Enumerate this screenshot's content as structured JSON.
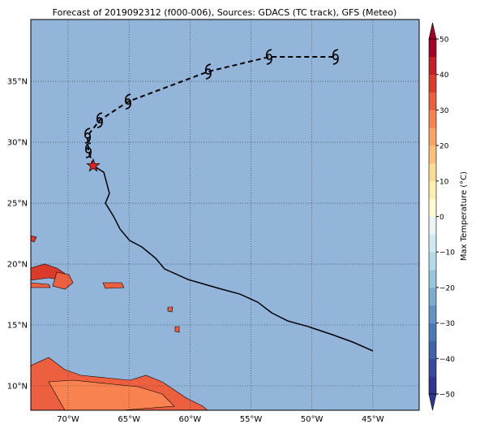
{
  "chart_data": {
    "type": "track-map",
    "title": "Forecast of 2019092312 (f000-006), Sources: GDACS (TC track), GFS (Meteo)",
    "xlim": [
      -73.06,
      -41.2
    ],
    "ylim": [
      8,
      40.07
    ],
    "xticks": [
      {
        "value": -70,
        "label": "70°W"
      },
      {
        "value": -65,
        "label": "65°W"
      },
      {
        "value": -60,
        "label": "60°W"
      },
      {
        "value": -55,
        "label": "55°W"
      },
      {
        "value": -50,
        "label": "50°W"
      },
      {
        "value": -45,
        "label": "45°W"
      }
    ],
    "yticks": [
      {
        "value": 10,
        "label": "10°N"
      },
      {
        "value": 15,
        "label": "15°N"
      },
      {
        "value": 20,
        "label": "20°N"
      },
      {
        "value": 25,
        "label": "25°N"
      },
      {
        "value": 30,
        "label": "30°N"
      },
      {
        "value": 35,
        "label": "35°N"
      }
    ],
    "grid": true,
    "past_track": {
      "lon": [
        -45.0,
        -46.66,
        -48.32,
        -50.32,
        -51.98,
        -53.31,
        -54.44,
        -55.9,
        -57.63,
        -60.16,
        -62.09,
        -62.82,
        -63.95,
        -64.95,
        -65.74,
        -66.28,
        -66.94,
        -66.61,
        -67.07,
        -67.94
      ],
      "lat": [
        12.87,
        13.6,
        14.2,
        14.87,
        15.33,
        16.0,
        16.87,
        17.53,
        18.0,
        18.73,
        19.6,
        20.47,
        21.4,
        21.93,
        22.87,
        23.93,
        25.0,
        25.8,
        27.53,
        28.07
      ],
      "color": "#000000"
    },
    "current_position": {
      "lon": -67.94,
      "lat": 28.07,
      "color": "#e8211b"
    },
    "forecast_track": {
      "lon": [
        -67.94,
        -68.34,
        -68.4,
        -67.41,
        -65.08,
        -58.5,
        -53.51,
        -48.06
      ],
      "lat": [
        28.07,
        29.33,
        30.53,
        31.8,
        33.33,
        35.8,
        37.0,
        37.0
      ],
      "color": "#000000"
    },
    "colorbar": {
      "label": "Max Temperature (°C)",
      "clim": [
        -50,
        50
      ],
      "ticks": [
        {
          "value": -50,
          "label": "−50"
        },
        {
          "value": -40,
          "label": "−40"
        },
        {
          "value": -30,
          "label": "−30"
        },
        {
          "value": -20,
          "label": "−20"
        },
        {
          "value": -10,
          "label": "−10"
        },
        0,
        10,
        20,
        30,
        40,
        50
      ],
      "colors": [
        "#313695",
        "#374a9f",
        "#4064aa",
        "#4a7bb7",
        "#6394c5",
        "#7cacd0",
        "#98c6df",
        "#b3dceb",
        "#cfeaf1",
        "#eaf6f4",
        "#fffed2",
        "#fff0b0",
        "#fedc91",
        "#fdc07a",
        "#fca264",
        "#f88250",
        "#ec5f3f",
        "#dc3b2c",
        "#c32127",
        "#a50026"
      ]
    }
  }
}
